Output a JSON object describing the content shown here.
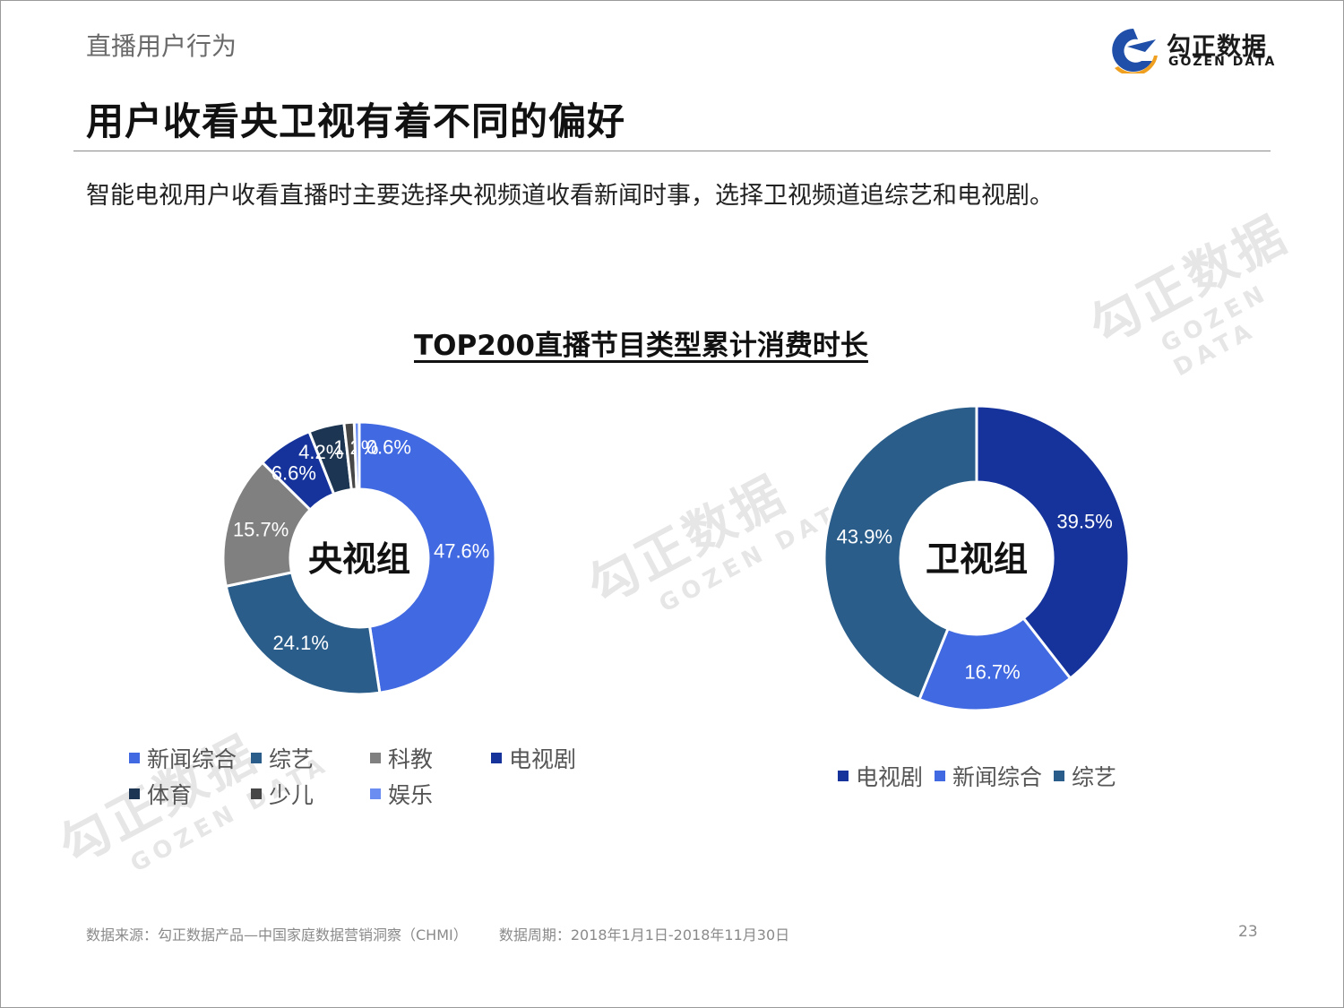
{
  "header": {
    "section_title": "直播用户行为",
    "main_title": "用户收看央卫视有着不同的偏好",
    "subtitle": "智能电视用户收看直播时主要选择央视频道收看新闻时事，选择卫视频道追综艺和电视剧。",
    "logo_cn": "勾正数据",
    "logo_en": "GOZEN DATA"
  },
  "watermark": {
    "cn": "勾正数据",
    "en": "GOZEN DATA"
  },
  "chart_title": "TOP200直播节目类型累计消费时长",
  "colors": {
    "news": "#4169e1",
    "variety": "#2a5d8a",
    "science_edu": "#808080",
    "tv_drama": "#15339b",
    "sports": "#1c3552",
    "kids": "#474747",
    "entertainment": "#6b8cf0"
  },
  "chart_data": [
    {
      "type": "pie",
      "donut": true,
      "title": "TOP200直播节目类型累计消费时长",
      "center_label": "央视组",
      "categories": [
        "新闻综合",
        "综艺",
        "科教",
        "电视剧",
        "体育",
        "少儿",
        "娱乐"
      ],
      "values": [
        47.6,
        24.1,
        15.7,
        6.6,
        4.2,
        1.2,
        0.6
      ],
      "labels": [
        "47.6%",
        "24.1%",
        "15.7%",
        "6.6%",
        "4.2%",
        "1.2%",
        "0.6%"
      ],
      "colors": [
        "#4169e1",
        "#2a5d8a",
        "#808080",
        "#15339b",
        "#1c3552",
        "#474747",
        "#6b8cf0"
      ],
      "legend_position": "bottom"
    },
    {
      "type": "pie",
      "donut": true,
      "title": "TOP200直播节目类型累计消费时长",
      "center_label": "卫视组",
      "categories": [
        "电视剧",
        "新闻综合",
        "综艺"
      ],
      "values": [
        39.5,
        16.7,
        43.9
      ],
      "labels": [
        "39.5%",
        "16.7%",
        "43.9%"
      ],
      "colors": [
        "#15339b",
        "#4169e1",
        "#2a5d8a"
      ],
      "legend_position": "bottom"
    }
  ],
  "left_legend": [
    {
      "label": "新闻综合",
      "color": "#4169e1"
    },
    {
      "label": "综艺",
      "color": "#2a5d8a"
    },
    {
      "label": "科教",
      "color": "#808080"
    },
    {
      "label": "电视剧",
      "color": "#15339b"
    },
    {
      "label": "体育",
      "color": "#1c3552"
    },
    {
      "label": "少儿",
      "color": "#474747"
    },
    {
      "label": "娱乐",
      "color": "#6b8cf0"
    }
  ],
  "right_legend": [
    {
      "label": "电视剧",
      "color": "#15339b"
    },
    {
      "label": "新闻综合",
      "color": "#4169e1"
    },
    {
      "label": "综艺",
      "color": "#2a5d8a"
    }
  ],
  "footer": {
    "source": "数据来源：勾正数据产品—中国家庭数据营销洞察（CHMI）",
    "period": "数据周期：2018年1月1日-2018年11月30日",
    "page_number": "23"
  }
}
